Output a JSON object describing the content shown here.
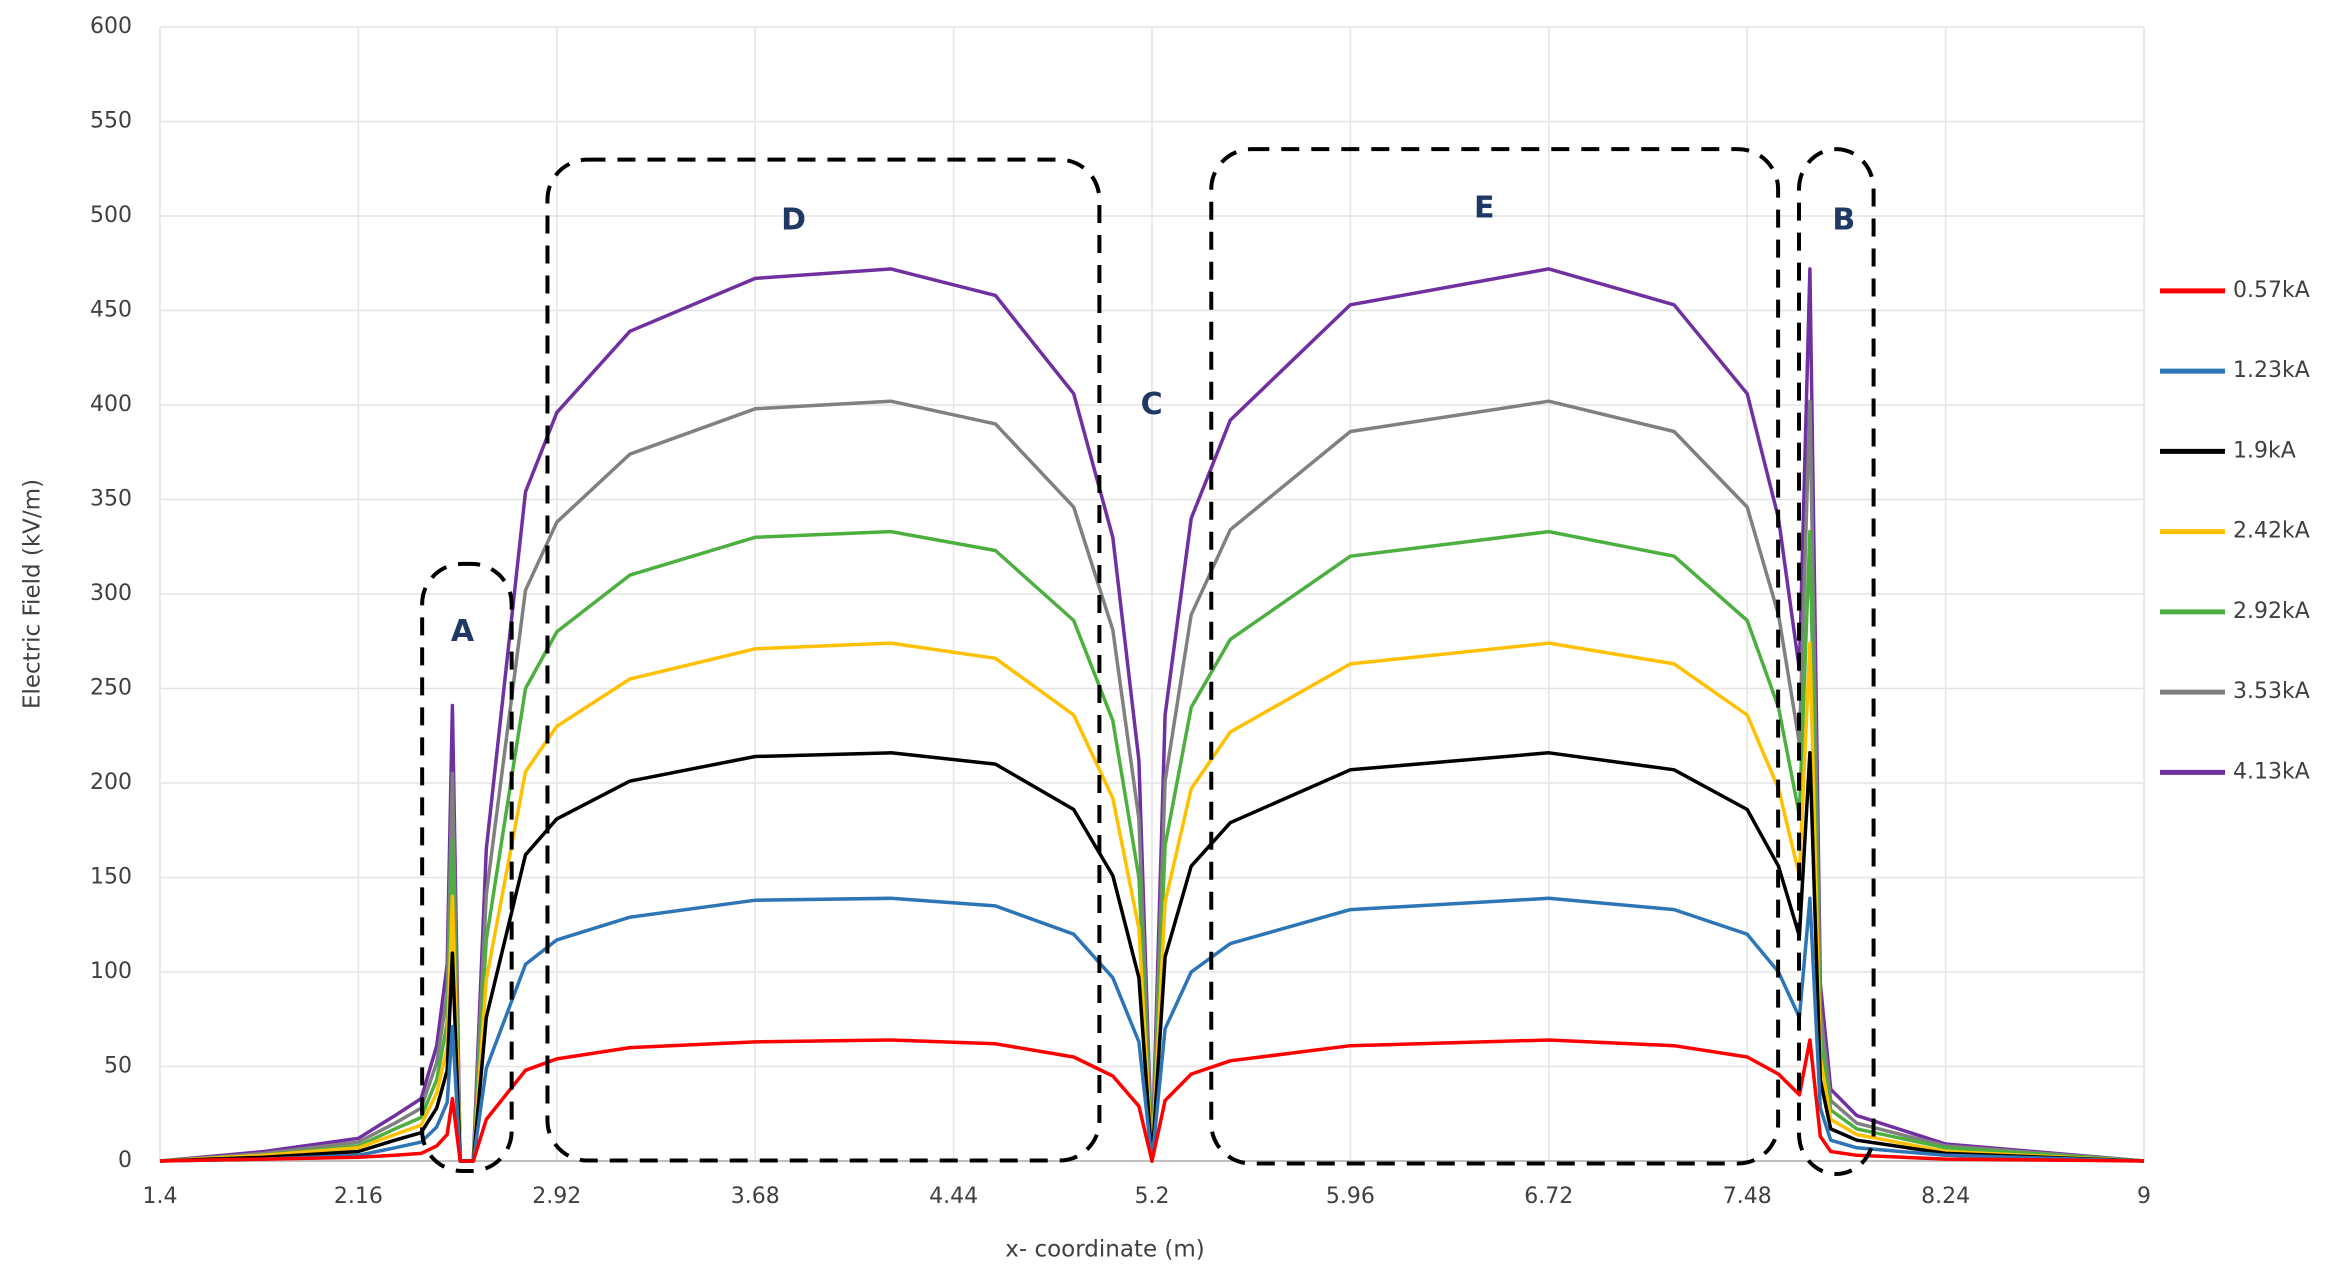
{
  "chart_data": {
    "type": "line",
    "xlabel": "x- coordinate (m)",
    "ylabel": "Electric Field (kV/m)",
    "x": [
      1.4,
      1.8,
      2.16,
      2.3,
      2.4,
      2.46,
      2.5,
      2.52,
      2.55,
      2.6,
      2.65,
      2.8,
      2.92,
      3.2,
      3.68,
      4.2,
      4.6,
      4.9,
      5.05,
      5.15,
      5.2,
      5.25,
      5.35,
      5.5,
      5.96,
      6.72,
      7.2,
      7.48,
      7.6,
      7.68,
      7.72,
      7.76,
      7.8,
      7.9,
      8.24,
      9
    ],
    "series": [
      {
        "name": "0.57kA",
        "color": "#ff0000",
        "values": [
          0,
          1,
          2,
          3,
          4,
          8,
          14,
          33,
          0,
          0,
          22,
          48,
          54,
          60,
          63,
          64,
          62,
          55,
          45,
          29,
          0,
          32,
          46,
          53,
          61,
          64,
          61,
          55,
          46,
          35,
          64,
          13,
          5,
          3,
          1,
          0
        ]
      },
      {
        "name": "1.23kA",
        "color": "#2e75b6",
        "values": [
          0,
          1,
          3,
          7,
          10,
          18,
          31,
          71,
          0,
          0,
          49,
          104,
          117,
          129,
          138,
          139,
          135,
          120,
          97,
          63,
          0,
          70,
          100,
          115,
          133,
          139,
          133,
          120,
          100,
          76,
          139,
          28,
          11,
          7,
          3,
          0
        ]
      },
      {
        "name": "1.9kA",
        "color": "#000000",
        "values": [
          0,
          2,
          5,
          11,
          15,
          28,
          48,
          110,
          0,
          0,
          76,
          162,
          181,
          201,
          214,
          216,
          210,
          186,
          151,
          97,
          0,
          108,
          156,
          179,
          207,
          216,
          207,
          186,
          156,
          119,
          216,
          43,
          17,
          11,
          4,
          0
        ]
      },
      {
        "name": "2.42kA",
        "color": "#ffc000",
        "values": [
          0,
          3,
          7,
          14,
          19,
          36,
          60,
          140,
          0,
          0,
          96,
          206,
          230,
          255,
          271,
          274,
          266,
          236,
          192,
          123,
          0,
          137,
          197,
          227,
          263,
          274,
          263,
          236,
          197,
          151,
          274,
          55,
          22,
          14,
          5,
          0
        ]
      },
      {
        "name": "2.92kA",
        "color": "#4caf3f",
        "values": [
          0,
          3,
          8,
          17,
          23,
          43,
          73,
          170,
          0,
          0,
          117,
          250,
          280,
          310,
          330,
          333,
          323,
          286,
          233,
          150,
          0,
          167,
          240,
          276,
          320,
          333,
          320,
          286,
          240,
          183,
          333,
          67,
          27,
          17,
          7,
          0
        ]
      },
      {
        "name": "3.53kA",
        "color": "#808080",
        "values": [
          0,
          4,
          10,
          20,
          28,
          52,
          88,
          205,
          0,
          0,
          141,
          302,
          338,
          374,
          398,
          402,
          390,
          346,
          281,
          181,
          0,
          201,
          289,
          334,
          386,
          402,
          386,
          346,
          289,
          221,
          402,
          80,
          32,
          20,
          8,
          0
        ]
      },
      {
        "name": "4.13kA",
        "color": "#7030a0",
        "values": [
          0,
          5,
          12,
          24,
          33,
          61,
          104,
          241,
          0,
          0,
          165,
          354,
          396,
          439,
          467,
          472,
          458,
          406,
          330,
          212,
          0,
          236,
          340,
          392,
          453,
          472,
          453,
          406,
          340,
          260,
          472,
          94,
          38,
          24,
          9,
          0
        ]
      }
    ],
    "xlim": [
      1.4,
      9
    ],
    "xticks": [
      1.4,
      2.16,
      2.92,
      3.68,
      4.44,
      5.2,
      5.96,
      6.72,
      7.48,
      8.24,
      9
    ],
    "ylim": [
      0,
      600
    ],
    "yticks": [
      0,
      50,
      100,
      150,
      200,
      250,
      300,
      350,
      400,
      450,
      500,
      550,
      600
    ],
    "grid": true,
    "legend": "right",
    "annotations": [
      "A",
      "D",
      "C",
      "E",
      "B"
    ]
  }
}
